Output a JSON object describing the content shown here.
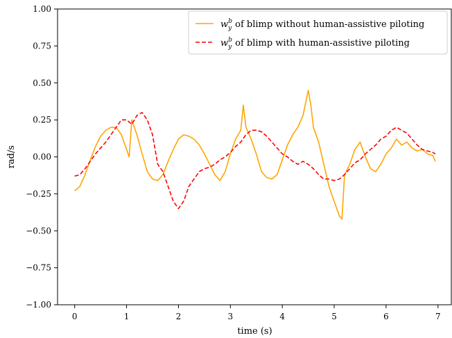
{
  "chart_data": {
    "type": "line",
    "xlabel": "time (s)",
    "ylabel": "rad/s",
    "xlim": [
      -0.33,
      7.27
    ],
    "ylim": [
      -1.0,
      1.0
    ],
    "xticks": [
      "0",
      "1",
      "2",
      "3",
      "4",
      "5",
      "6",
      "7"
    ],
    "yticks": [
      "1.00",
      "0.75",
      "0.50",
      "0.25",
      "0.00",
      "−0.25",
      "−0.50",
      "−0.75",
      "−1.00"
    ],
    "grid": false,
    "legend_position": "top-right",
    "series": [
      {
        "name": "w_y^b of blimp without human-assistive piloting",
        "legend_main": "w",
        "legend_sub": "y",
        "legend_sup": "b",
        "legend_rest": " of blimp without human-assistive piloting",
        "color": "#ffa500",
        "style": "solid",
        "x": [
          0.0,
          0.1,
          0.2,
          0.3,
          0.4,
          0.5,
          0.6,
          0.7,
          0.8,
          0.9,
          1.0,
          1.05,
          1.1,
          1.2,
          1.3,
          1.4,
          1.5,
          1.6,
          1.7,
          1.8,
          1.9,
          2.0,
          2.1,
          2.2,
          2.3,
          2.4,
          2.5,
          2.6,
          2.7,
          2.8,
          2.9,
          3.0,
          3.1,
          3.2,
          3.25,
          3.3,
          3.4,
          3.5,
          3.6,
          3.7,
          3.8,
          3.9,
          4.0,
          4.1,
          4.2,
          4.3,
          4.4,
          4.5,
          4.55,
          4.6,
          4.7,
          4.8,
          4.9,
          5.0,
          5.1,
          5.15,
          5.2,
          5.3,
          5.4,
          5.5,
          5.6,
          5.7,
          5.8,
          5.9,
          6.0,
          6.1,
          6.2,
          6.3,
          6.4,
          6.5,
          6.6,
          6.7,
          6.8,
          6.9,
          6.95
        ],
        "values": [
          -0.23,
          -0.2,
          -0.12,
          -0.02,
          0.07,
          0.14,
          0.18,
          0.2,
          0.2,
          0.15,
          0.05,
          0.0,
          0.25,
          0.15,
          0.02,
          -0.1,
          -0.15,
          -0.16,
          -0.12,
          -0.03,
          0.05,
          0.12,
          0.15,
          0.14,
          0.12,
          0.08,
          0.02,
          -0.05,
          -0.12,
          -0.16,
          -0.1,
          0.02,
          0.12,
          0.18,
          0.35,
          0.2,
          0.12,
          0.02,
          -0.1,
          -0.14,
          -0.15,
          -0.12,
          -0.02,
          0.08,
          0.15,
          0.2,
          0.28,
          0.45,
          0.35,
          0.2,
          0.1,
          -0.05,
          -0.2,
          -0.3,
          -0.4,
          -0.42,
          -0.12,
          -0.05,
          0.05,
          0.1,
          0.0,
          -0.08,
          -0.1,
          -0.05,
          0.02,
          0.06,
          0.12,
          0.08,
          0.1,
          0.06,
          0.04,
          0.05,
          0.02,
          0.01,
          -0.03
        ]
      },
      {
        "name": "w_y^b of blimp with human-assistive piloting",
        "legend_main": "w",
        "legend_sub": "y",
        "legend_sup": "b",
        "legend_rest": " of blimp with human-assistive piloting",
        "color": "#ff0000",
        "style": "dashed",
        "x": [
          0.0,
          0.1,
          0.2,
          0.3,
          0.4,
          0.5,
          0.6,
          0.7,
          0.8,
          0.9,
          1.0,
          1.1,
          1.2,
          1.3,
          1.4,
          1.5,
          1.6,
          1.7,
          1.8,
          1.9,
          2.0,
          2.1,
          2.2,
          2.3,
          2.4,
          2.5,
          2.6,
          2.7,
          2.8,
          2.9,
          3.0,
          3.1,
          3.2,
          3.3,
          3.4,
          3.5,
          3.6,
          3.7,
          3.8,
          3.9,
          4.0,
          4.1,
          4.2,
          4.3,
          4.4,
          4.5,
          4.6,
          4.7,
          4.8,
          4.9,
          5.0,
          5.1,
          5.2,
          5.3,
          5.4,
          5.5,
          5.6,
          5.7,
          5.8,
          5.9,
          6.0,
          6.1,
          6.2,
          6.3,
          6.4,
          6.5,
          6.6,
          6.7,
          6.8,
          6.9,
          6.95
        ],
        "values": [
          -0.13,
          -0.12,
          -0.08,
          -0.03,
          0.02,
          0.06,
          0.1,
          0.15,
          0.2,
          0.25,
          0.25,
          0.22,
          0.28,
          0.3,
          0.25,
          0.15,
          -0.05,
          -0.1,
          -0.2,
          -0.3,
          -0.35,
          -0.3,
          -0.2,
          -0.15,
          -0.1,
          -0.08,
          -0.07,
          -0.05,
          -0.02,
          0.0,
          0.03,
          0.07,
          0.1,
          0.15,
          0.18,
          0.18,
          0.17,
          0.14,
          0.1,
          0.06,
          0.02,
          0.0,
          -0.03,
          -0.05,
          -0.03,
          -0.05,
          -0.08,
          -0.12,
          -0.15,
          -0.15,
          -0.16,
          -0.15,
          -0.12,
          -0.08,
          -0.04,
          -0.02,
          0.02,
          0.05,
          0.08,
          0.12,
          0.14,
          0.18,
          0.2,
          0.18,
          0.16,
          0.12,
          0.08,
          0.05,
          0.04,
          0.03,
          0.02
        ]
      }
    ]
  }
}
